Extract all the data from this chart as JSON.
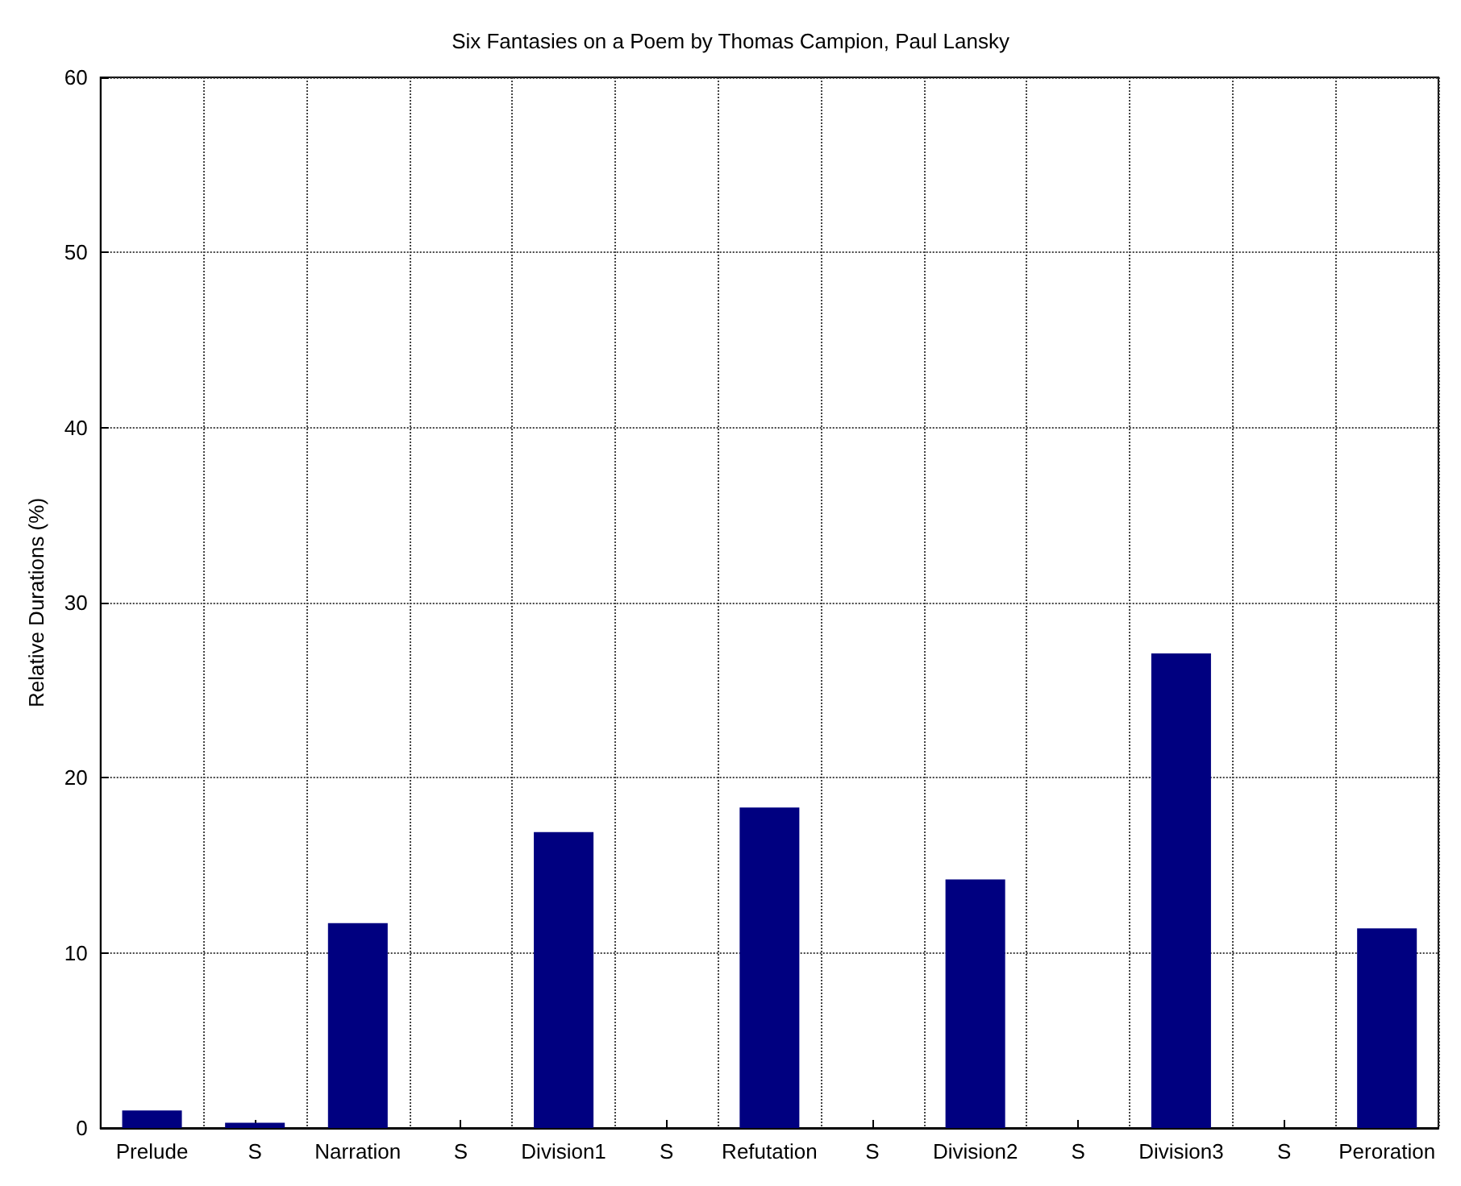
{
  "chart_data": {
    "type": "bar",
    "title": "Six Fantasies on a Poem by Thomas Campion, Paul Lansky",
    "ylabel": "Relative Durations (%)",
    "categories": [
      "Prelude",
      "S",
      "Narration",
      "S",
      "Division1",
      "S",
      "Refutation",
      "S",
      "Division2",
      "S",
      "Division3",
      "S",
      "Peroration"
    ],
    "values": [
      1.0,
      0.3,
      11.7,
      0,
      16.9,
      0,
      18.3,
      0,
      14.2,
      0,
      27.1,
      0,
      11.4
    ],
    "color": "#000080",
    "ylim": [
      0,
      60
    ],
    "yticks": [
      0,
      10,
      20,
      30,
      40,
      50,
      60
    ],
    "grid": true
  }
}
